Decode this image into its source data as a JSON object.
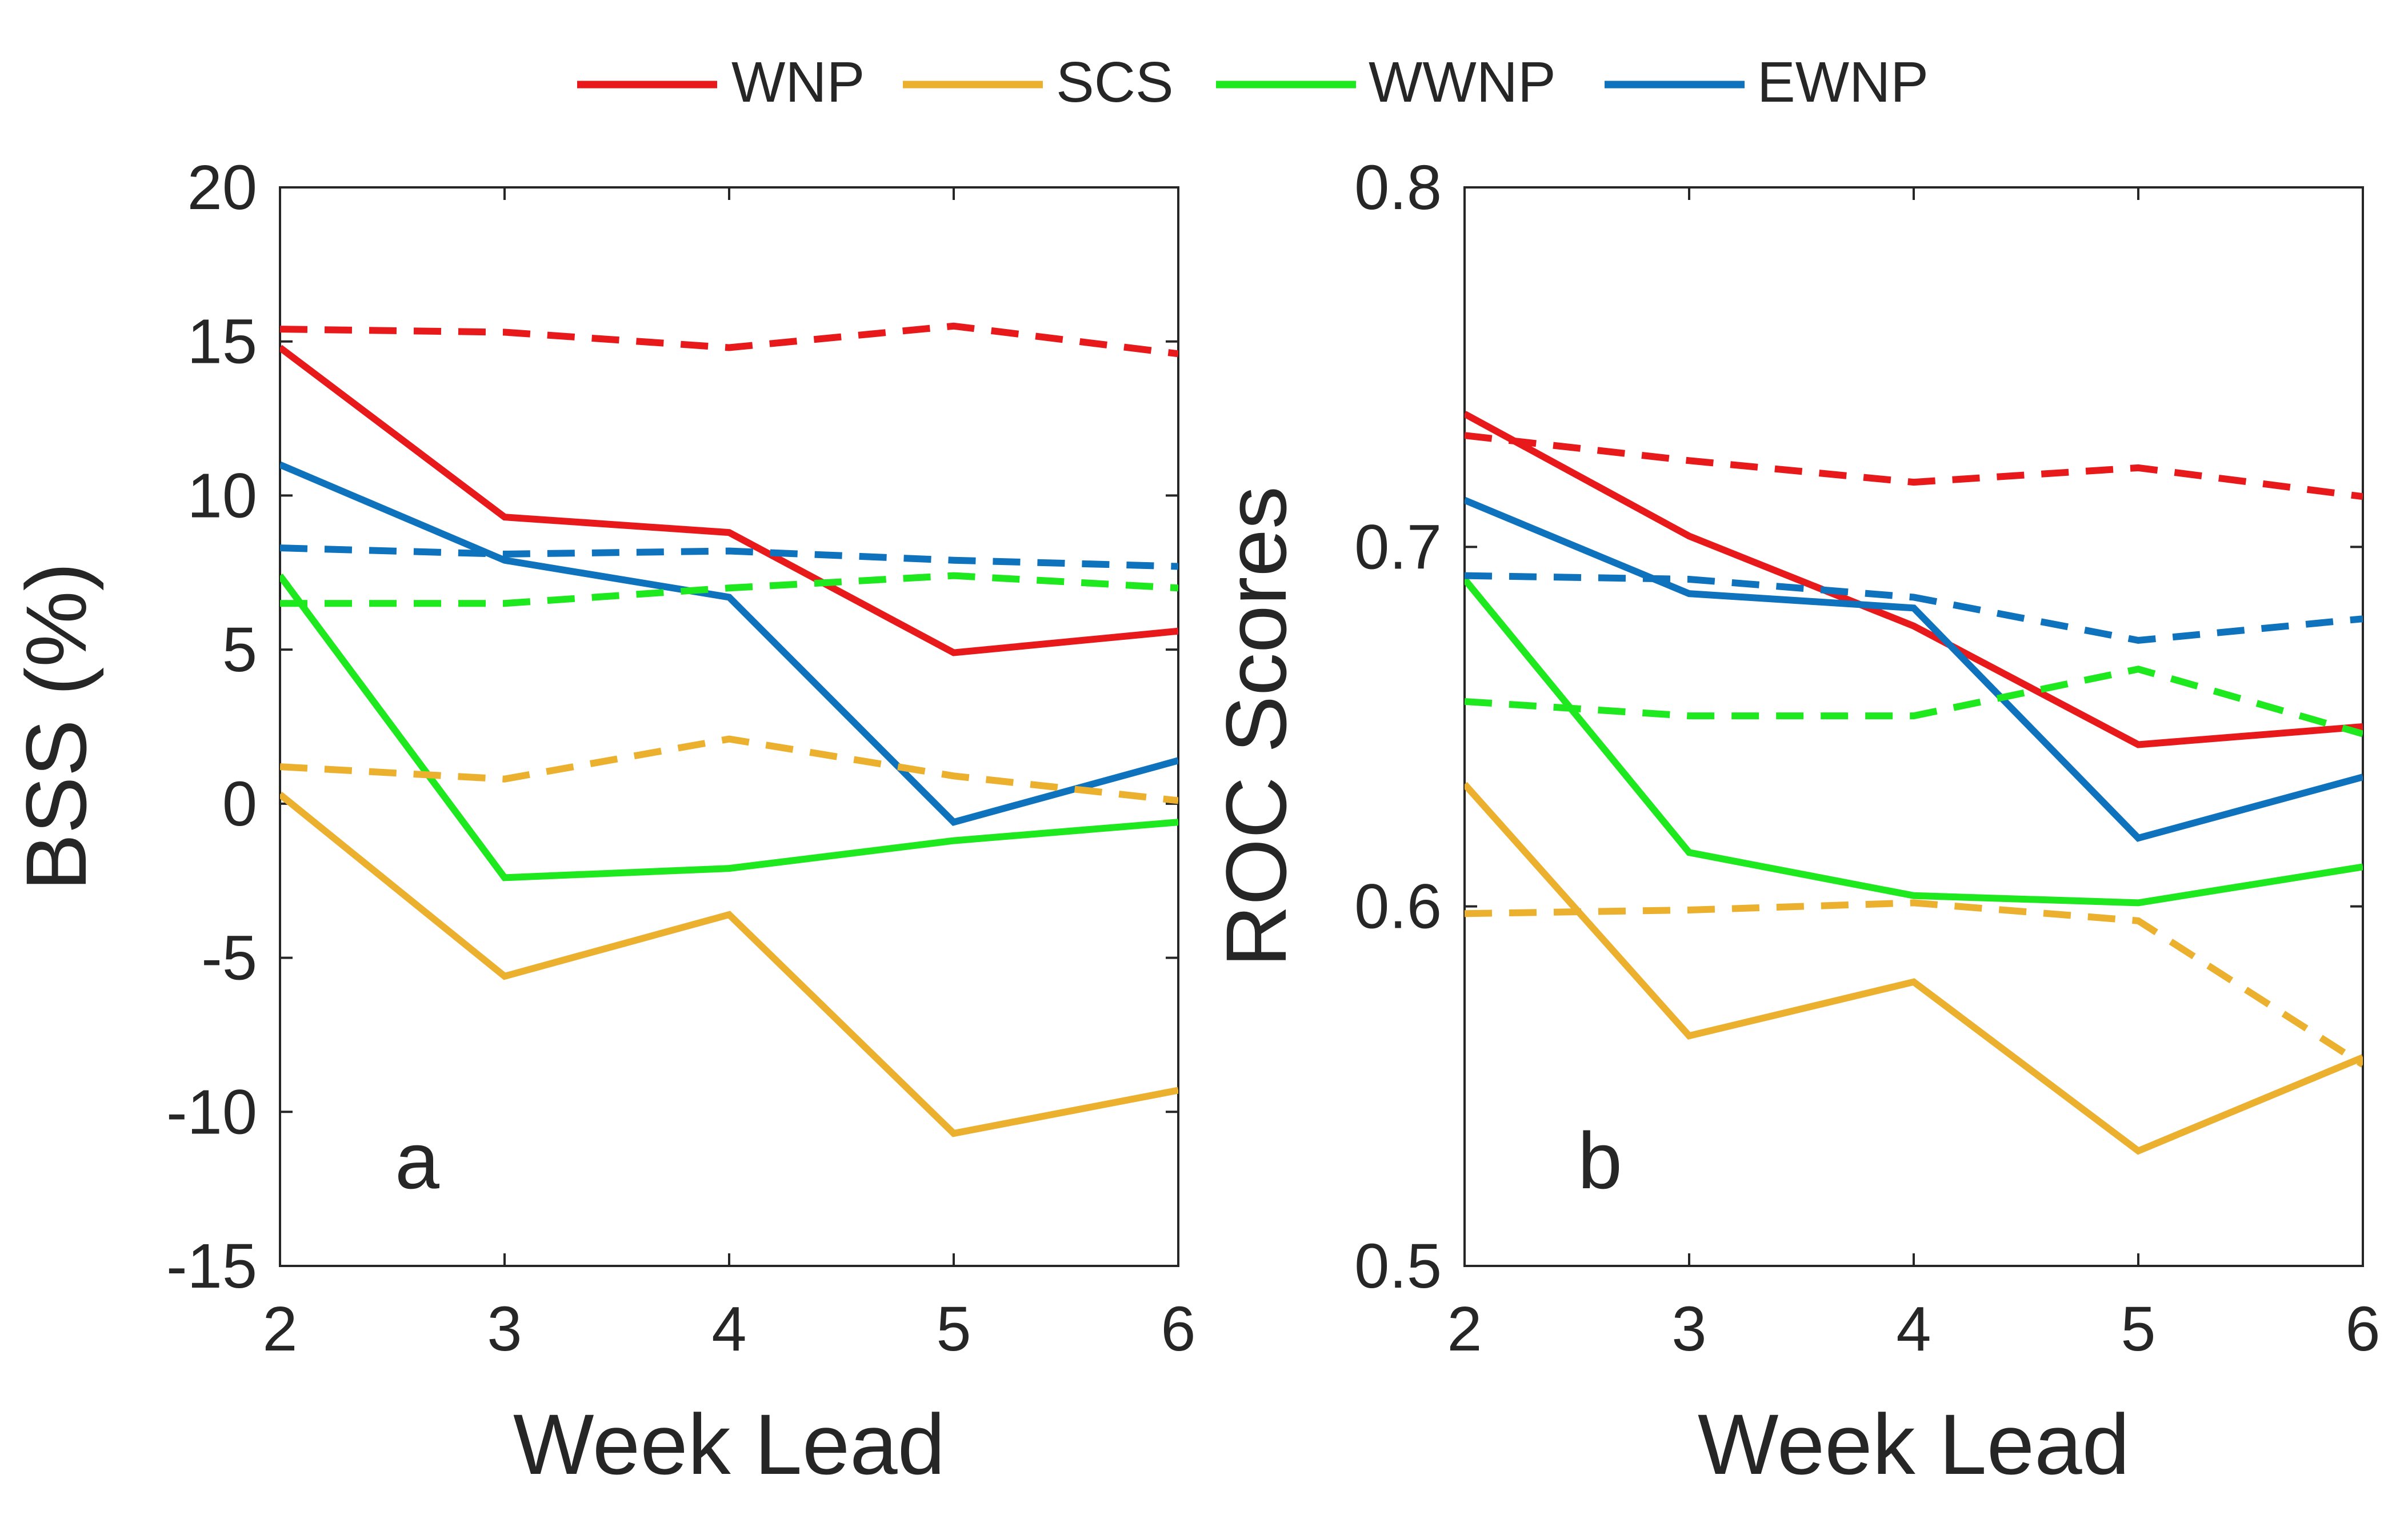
{
  "colors": {
    "WNP": "#e8191b",
    "SCS": "#ebb02d",
    "WWNP": "#1ee81e",
    "EWNP": "#0f72bd",
    "axis": "#262626"
  },
  "legend": {
    "placement": "top-center",
    "entries": [
      "WNP",
      "SCS",
      "WWNP",
      "EWNP"
    ]
  },
  "chart_data": [
    {
      "type": "line",
      "panel_label": "a",
      "xlabel": "Week Lead",
      "ylabel": "BSS (%)",
      "xlim": [
        2,
        6
      ],
      "ylim": [
        -15,
        20
      ],
      "xticks": [
        "2",
        "3",
        "4",
        "5",
        "6"
      ],
      "yticks": [
        "-15",
        "-10",
        "-5",
        "0",
        "5",
        "10",
        "15",
        "20"
      ],
      "x": [
        2,
        3,
        4,
        5,
        6
      ],
      "grid": false,
      "series": [
        {
          "name": "WNP",
          "style": "solid",
          "values": [
            14.8,
            9.3,
            8.8,
            4.9,
            5.6
          ]
        },
        {
          "name": "SCS",
          "style": "solid",
          "values": [
            0.3,
            -5.6,
            -3.6,
            -10.7,
            -9.3
          ]
        },
        {
          "name": "WWNP",
          "style": "solid",
          "values": [
            7.4,
            -2.4,
            -2.1,
            -1.2,
            -0.6
          ]
        },
        {
          "name": "EWNP",
          "style": "solid",
          "values": [
            11.0,
            7.9,
            6.7,
            -0.6,
            1.4
          ]
        },
        {
          "name": "WNP",
          "style": "dashed",
          "values": [
            15.4,
            15.3,
            14.8,
            15.5,
            14.6
          ]
        },
        {
          "name": "SCS",
          "style": "dashed",
          "values": [
            1.2,
            0.8,
            2.1,
            0.9,
            0.1
          ]
        },
        {
          "name": "WWNP",
          "style": "dashed",
          "values": [
            6.5,
            6.5,
            7.0,
            7.4,
            7.0
          ]
        },
        {
          "name": "EWNP",
          "style": "dashed",
          "values": [
            8.3,
            8.1,
            8.2,
            7.9,
            7.7
          ]
        }
      ]
    },
    {
      "type": "line",
      "panel_label": "b",
      "xlabel": "Week Lead",
      "ylabel": "ROC Scores",
      "xlim": [
        2,
        6
      ],
      "ylim": [
        0.5,
        0.8
      ],
      "xticks": [
        "2",
        "3",
        "4",
        "5",
        "6"
      ],
      "yticks": [
        "0.5",
        "0.6",
        "0.7",
        "0.8"
      ],
      "x": [
        2,
        3,
        4,
        5,
        6
      ],
      "grid": false,
      "series": [
        {
          "name": "WNP",
          "style": "solid",
          "values": [
            0.737,
            0.703,
            0.678,
            0.645,
            0.65
          ]
        },
        {
          "name": "SCS",
          "style": "solid",
          "values": [
            0.634,
            0.564,
            0.579,
            0.532,
            0.558
          ]
        },
        {
          "name": "WWNP",
          "style": "solid",
          "values": [
            0.691,
            0.615,
            0.603,
            0.601,
            0.611
          ]
        },
        {
          "name": "EWNP",
          "style": "solid",
          "values": [
            0.713,
            0.687,
            0.683,
            0.619,
            0.636
          ]
        },
        {
          "name": "WNP",
          "style": "dashed",
          "values": [
            0.731,
            0.724,
            0.718,
            0.722,
            0.714
          ]
        },
        {
          "name": "SCS",
          "style": "dashed",
          "values": [
            0.598,
            0.599,
            0.601,
            0.596,
            0.556
          ]
        },
        {
          "name": "WWNP",
          "style": "dashed",
          "values": [
            0.657,
            0.653,
            0.653,
            0.666,
            0.648
          ]
        },
        {
          "name": "EWNP",
          "style": "dashed",
          "values": [
            0.692,
            0.691,
            0.686,
            0.674,
            0.68
          ]
        }
      ]
    }
  ]
}
